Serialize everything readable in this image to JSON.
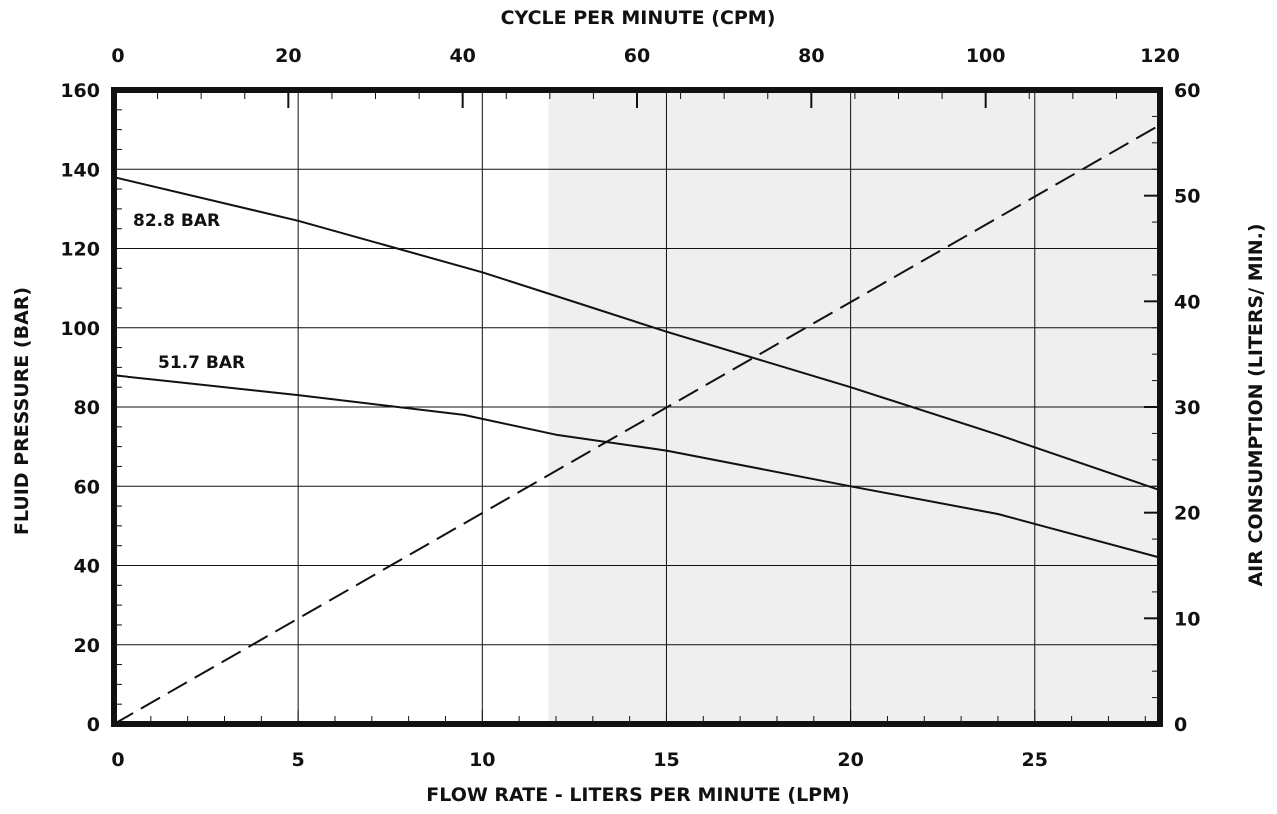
{
  "chart_data": {
    "type": "line",
    "xlabel": "FLOW RATE - LITERS PER MINUTE (LPM)",
    "x2label": "CYCLE PER MINUTE (CPM)",
    "ylabel": "FLUID PRESSURE (BAR)",
    "y2label": "AIR CONSUMPTION (LITERS/ MIN.)",
    "xlim": [
      0,
      28.4
    ],
    "x2lim": [
      0,
      120
    ],
    "ylim": [
      0,
      160
    ],
    "y2lim": [
      0,
      60
    ],
    "x_ticks": [
      0,
      5,
      10,
      15,
      20,
      25
    ],
    "x2_ticks": [
      0,
      20,
      40,
      60,
      80,
      100,
      120
    ],
    "y_ticks": [
      0,
      20,
      40,
      60,
      80,
      100,
      120,
      140,
      160
    ],
    "y2_ticks": [
      0,
      10,
      20,
      30,
      40,
      50,
      60
    ],
    "grid": true,
    "shaded_region_x": [
      11.8,
      28.4
    ],
    "shade_color": "#efefef",
    "line_color": "#111111",
    "series": [
      {
        "name": "82.8 BAR",
        "axis": "left",
        "style": "solid",
        "x": [
          0,
          5,
          10,
          12,
          15,
          20,
          24,
          28.4
        ],
        "y": [
          138,
          127,
          114,
          108,
          99,
          85,
          73,
          59
        ]
      },
      {
        "name": "51.7 BAR",
        "axis": "left",
        "style": "solid",
        "x": [
          0,
          5,
          9.5,
          12,
          15,
          20,
          24,
          28.4
        ],
        "y": [
          88,
          83,
          78,
          73,
          69,
          60,
          53,
          42
        ]
      },
      {
        "axis": "right",
        "style": "dashed",
        "x": [
          0,
          28.4
        ],
        "y": [
          0,
          56.7
        ]
      }
    ]
  }
}
